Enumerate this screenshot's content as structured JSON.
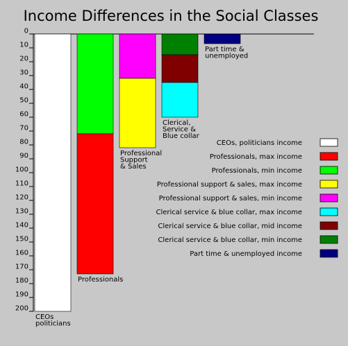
{
  "chart_data": {
    "type": "bar",
    "title": "Income Differences in the Social Classes",
    "orientation": "vertical-downward",
    "ylim": [
      0,
      200
    ],
    "yticks": [
      0,
      10,
      20,
      30,
      40,
      50,
      60,
      70,
      80,
      90,
      100,
      110,
      120,
      130,
      140,
      150,
      160,
      170,
      180,
      190,
      200
    ],
    "grid": false,
    "legend_position": "right",
    "categories": [
      {
        "label_lines": [
          "CEOs",
          "politicians"
        ],
        "segments": [
          {
            "series": "ceos",
            "from": 0,
            "to": 200
          }
        ]
      },
      {
        "label_lines": [
          "Professionals"
        ],
        "segments": [
          {
            "series": "prof_min",
            "from": 0,
            "to": 72
          },
          {
            "series": "prof_max",
            "from": 72,
            "to": 173
          }
        ]
      },
      {
        "label_lines": [
          "Professional",
          "Support",
          "& Sales"
        ],
        "segments": [
          {
            "series": "pss_min",
            "from": 0,
            "to": 32
          },
          {
            "series": "pss_max",
            "from": 32,
            "to": 82
          }
        ]
      },
      {
        "label_lines": [
          "Clerical,",
          "Service &",
          "Blue collar"
        ],
        "segments": [
          {
            "series": "cbc_min",
            "from": 0,
            "to": 15
          },
          {
            "series": "cbc_mid",
            "from": 15,
            "to": 35
          },
          {
            "series": "cbc_max",
            "from": 35,
            "to": 60
          }
        ]
      },
      {
        "label_lines": [
          "Part time &",
          "unemployed"
        ],
        "segments": [
          {
            "series": "pt",
            "from": 0,
            "to": 7
          }
        ]
      }
    ],
    "series": [
      {
        "id": "ceos",
        "name": "CEOs, politicians income",
        "color": "#ffffff"
      },
      {
        "id": "prof_max",
        "name": "Professionals, max income",
        "color": "#ff0000"
      },
      {
        "id": "prof_min",
        "name": "Professionals, min income",
        "color": "#00ff00"
      },
      {
        "id": "pss_max",
        "name": "Professional support & sales, max income",
        "color": "#ffff00"
      },
      {
        "id": "pss_min",
        "name": "Professional support & sales, min income",
        "color": "#ff00ff"
      },
      {
        "id": "cbc_max",
        "name": "Clerical service & blue collar, max income",
        "color": "#00ffff"
      },
      {
        "id": "cbc_mid",
        "name": "Clerical service & blue collar, mid income",
        "color": "#800000"
      },
      {
        "id": "cbc_min",
        "name": "Clerical service & blue collar, min income",
        "color": "#008000"
      },
      {
        "id": "pt",
        "name": "Part time & unemployed income",
        "color": "#000080"
      }
    ]
  }
}
